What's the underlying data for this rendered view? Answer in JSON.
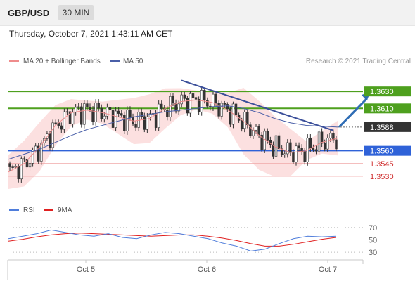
{
  "header": {
    "symbol": "GBP/USD",
    "timeframe": "30 MIN",
    "datetime": "Thursday, October 7, 2021 1:43:11 AM CET"
  },
  "legend": {
    "ma20": "MA 20 + Bollinger Bands",
    "ma50": "MA 50",
    "credit": "Research © 2021 Trading Central"
  },
  "rsi_legend": {
    "rsi": "RSI",
    "ma9": "9MA"
  },
  "colors": {
    "resistance": "#4ea01e",
    "support": "#2f62d8",
    "support_light": "#e05050",
    "current": "#333333",
    "bollinger": "#fbdada",
    "ma20": "#ef8c8c",
    "ma50": "#4a5fa8",
    "trend": "#3b4f9a",
    "arrow": "#2f6db5",
    "rsi": "#4f7ddb",
    "rsi_ma": "#e02020"
  },
  "chart_data": [
    {
      "type": "line",
      "title": "",
      "x_ticks": [
        "Oct 5",
        "Oct 6",
        "Oct 7"
      ],
      "ylim": [
        1.351,
        1.3655
      ],
      "series": [
        {
          "name": "MA 20 + Bollinger Bands",
          "values": [
            1.3535,
            1.3545,
            1.3565,
            1.359,
            1.3605,
            1.3608,
            1.3605,
            1.36,
            1.3595,
            1.3598,
            1.361,
            1.3618,
            1.362,
            1.3617,
            1.3608,
            1.3595,
            1.3578,
            1.3565,
            1.3558,
            1.356,
            1.357,
            1.3575
          ]
        },
        {
          "name": "MA 50",
          "values": [
            1.355,
            1.3556,
            1.3562,
            1.357,
            1.3578,
            1.3585,
            1.359,
            1.3595,
            1.36,
            1.3603,
            1.3606,
            1.3608,
            1.361,
            1.3612,
            1.3613,
            1.361,
            1.3605,
            1.3598,
            1.3593,
            1.359,
            1.3589,
            1.3588
          ]
        }
      ],
      "levels": [
        {
          "value": "1.3630",
          "kind": "resistance"
        },
        {
          "value": "1.3610",
          "kind": "resistance"
        },
        {
          "value": "1.3588",
          "kind": "current"
        },
        {
          "value": "1.3560",
          "kind": "support"
        },
        {
          "value": "1.3545",
          "kind": "support_light"
        },
        {
          "value": "1.3530",
          "kind": "support_light"
        }
      ]
    },
    {
      "type": "line",
      "title": "",
      "ylim": [
        20,
        80
      ],
      "y_ticks": [
        "70",
        "50",
        "30"
      ],
      "series": [
        {
          "name": "RSI",
          "values": [
            52,
            56,
            60,
            66,
            62,
            58,
            56,
            60,
            54,
            52,
            58,
            62,
            60,
            56,
            52,
            45,
            40,
            32,
            35,
            44,
            52,
            56,
            55,
            56
          ]
        },
        {
          "name": "9MA",
          "values": [
            48,
            51,
            55,
            58,
            60,
            61,
            60,
            59,
            58,
            57,
            56,
            57,
            58,
            58,
            56,
            53,
            49,
            44,
            40,
            40,
            43,
            47,
            51,
            54
          ]
        }
      ]
    }
  ]
}
